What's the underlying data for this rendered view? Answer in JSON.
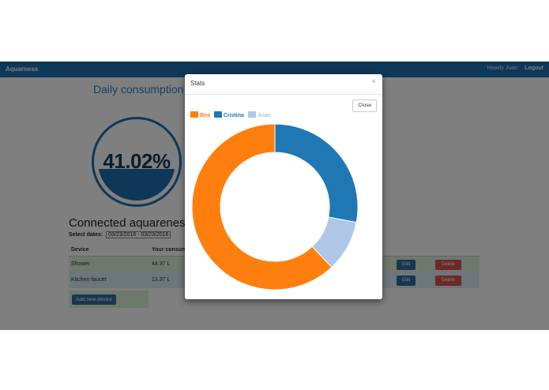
{
  "navbar": {
    "brand": "Aquarness",
    "greeting": "Howdy Juan",
    "logout": "Logout"
  },
  "page": {
    "title": "Daily consumption"
  },
  "gauge": {
    "value_text": "41.02%",
    "fill_fraction": 0.4102
  },
  "devices": {
    "title": "Connected aquareness",
    "date_label": "Select dates:",
    "date_range": "03/23/2016 - 03/23/2016",
    "columns": [
      "Device",
      "Your consum"
    ],
    "rows": [
      {
        "device": "Shower",
        "usage": "44.37 L",
        "edit": "Edit",
        "delete": "Delete"
      },
      {
        "device": "Kitchen faucet",
        "usage": "13.37 L",
        "edit": "Edit",
        "delete": "Delete"
      }
    ],
    "add_button": "Add new device"
  },
  "modal": {
    "title": "Stats",
    "close_x": "×",
    "close_button": "Close"
  },
  "colors": {
    "nav": "#1f6fb0",
    "bea": "#ff7f0e",
    "cristina": "#1f77b4",
    "juan": "#aec7e8"
  },
  "chart_data": {
    "type": "pie",
    "donut": true,
    "title": "",
    "legend_placement": "top-left",
    "series": [
      {
        "name": "Bea",
        "value": 62,
        "color": "#ff7f0e"
      },
      {
        "name": "Cristina",
        "value": 28,
        "color": "#1f77b4"
      },
      {
        "name": "Juan",
        "value": 10,
        "color": "#aec7e8"
      }
    ]
  }
}
